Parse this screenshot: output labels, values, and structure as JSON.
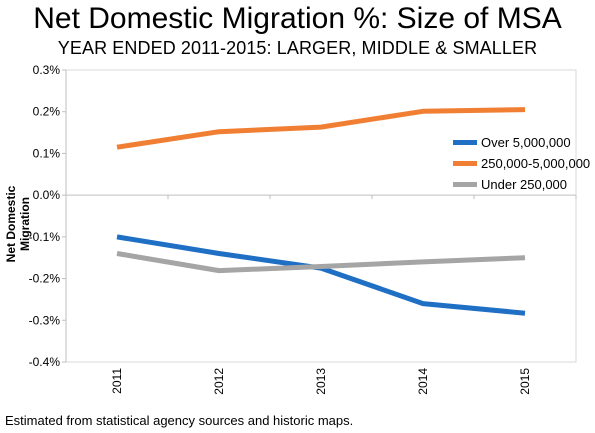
{
  "header": {
    "title": "Net Domestic Migration %: Size of MSA",
    "subtitle": "YEAR ENDED 2011-2015: LARGER, MIDDLE & SMALLER"
  },
  "footer": {
    "source": "Estimated from statistical agency sources and historic maps."
  },
  "chart_data": {
    "type": "line",
    "title": "Net Domestic Migration %: Size of MSA",
    "subtitle": "YEAR ENDED 2011-2015: LARGER, MIDDLE & SMALLER",
    "ylabel": "Net Domestic Migration",
    "xlabel": "",
    "ylim": [
      -0.4,
      0.3
    ],
    "y_ticks": [
      0.3,
      0.2,
      0.1,
      0.0,
      -0.1,
      -0.2,
      -0.3,
      -0.4
    ],
    "y_tick_labels": [
      "0.3%",
      "0.2%",
      "0.1%",
      "0.0%",
      "-0.1%",
      "-0.2%",
      "-0.3%",
      "-0.4%"
    ],
    "categories": [
      "2011",
      "2012",
      "2013",
      "2014",
      "2015"
    ],
    "grid": false,
    "legend_position": "right",
    "series": [
      {
        "name": "Over 5,000,000",
        "color": "#1f6fc5",
        "values": [
          -0.1,
          -0.14,
          -0.175,
          -0.26,
          -0.283
        ]
      },
      {
        "name": "250,000-5,000,000",
        "color": "#f07f34",
        "values": [
          0.115,
          0.152,
          0.163,
          0.201,
          0.205
        ]
      },
      {
        "name": "Under 250,000",
        "color": "#a5a5a5",
        "values": [
          -0.14,
          -0.181,
          -0.171,
          -0.16,
          -0.15
        ]
      }
    ]
  }
}
